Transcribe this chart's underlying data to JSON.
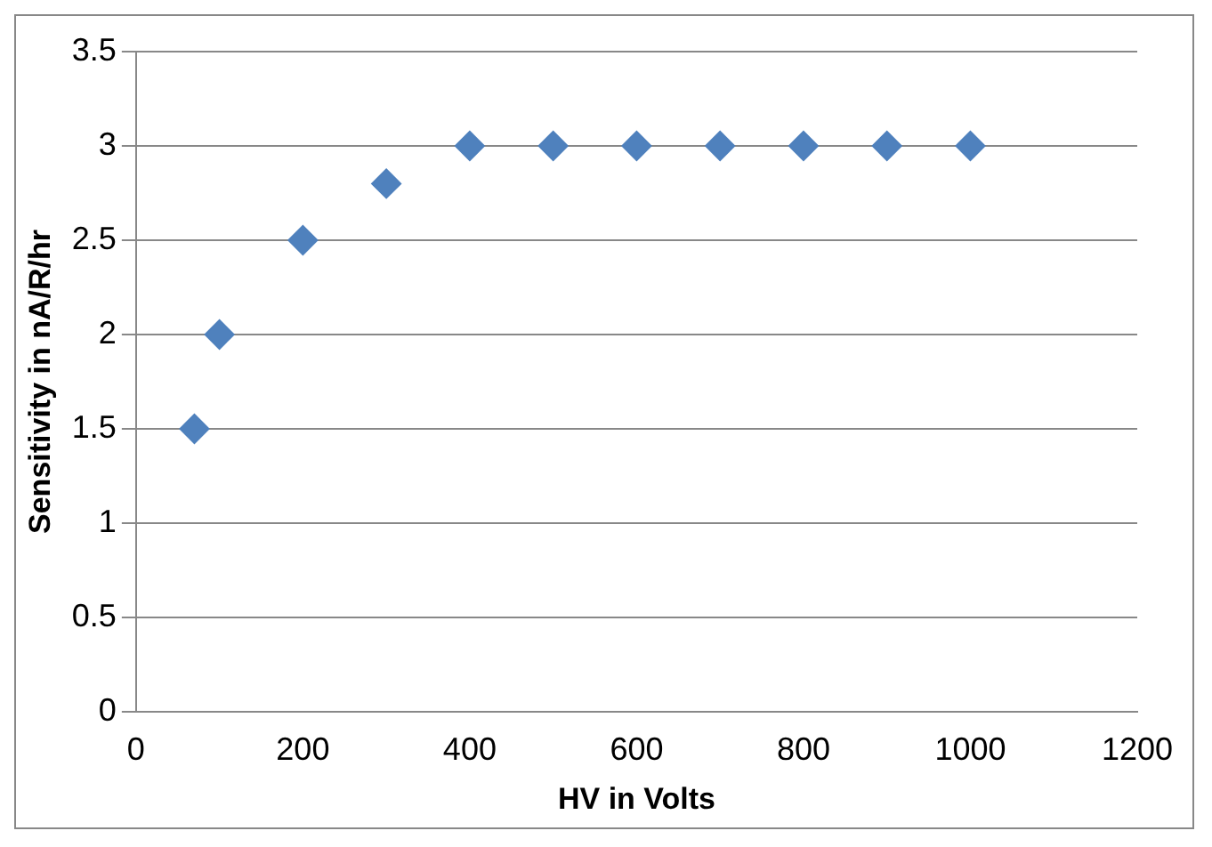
{
  "chart_data": {
    "type": "scatter",
    "xlabel": "HV in Volts",
    "ylabel": "Sensitivity in nA/R/hr",
    "x": [
      70,
      100,
      200,
      300,
      400,
      500,
      600,
      700,
      800,
      900,
      1000
    ],
    "values": [
      1.5,
      2,
      2.5,
      2.8,
      3,
      3,
      3,
      3,
      3,
      3,
      3
    ],
    "color": "#4f81bd",
    "marker": "diamond",
    "xlim": [
      0,
      1200
    ],
    "xticks": [
      0,
      200,
      400,
      600,
      800,
      1000,
      1200
    ],
    "ylim": [
      0,
      3.5
    ],
    "yticks": [
      0,
      0.5,
      1,
      1.5,
      2,
      2.5,
      3,
      3.5
    ],
    "grid": "y",
    "legend": false
  }
}
